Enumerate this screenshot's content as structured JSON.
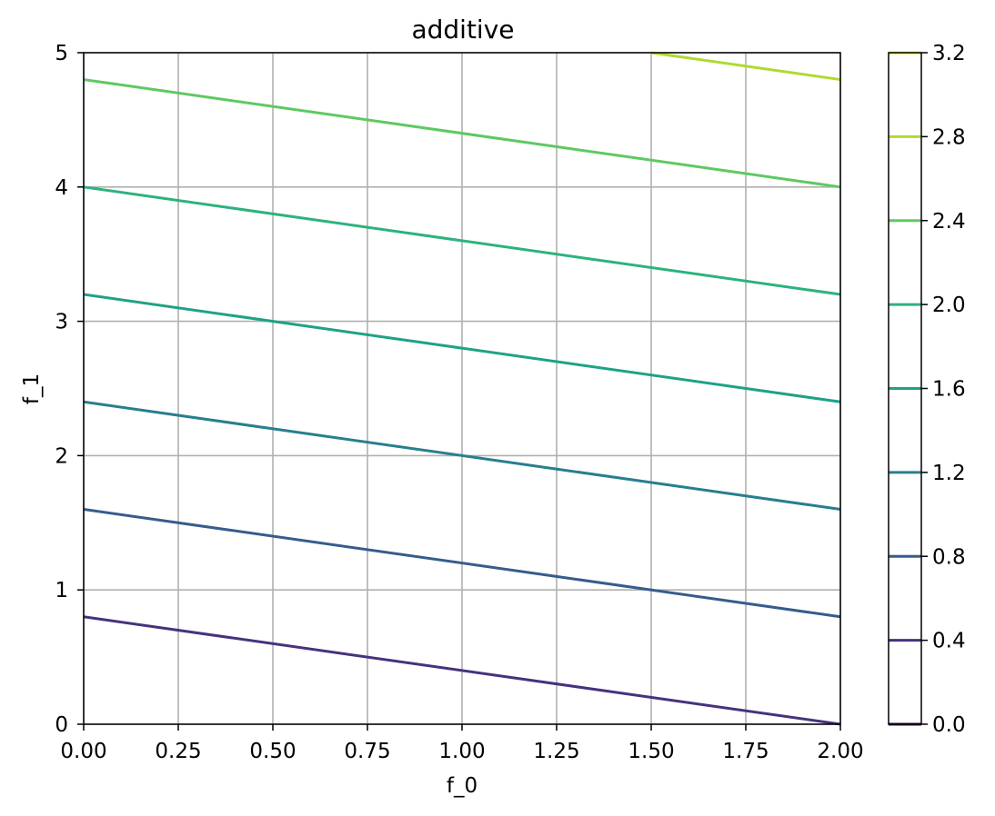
{
  "chart_data": {
    "type": "contour",
    "title": "additive",
    "xlabel": "f_0",
    "ylabel": "f_1",
    "xlim": [
      0,
      2
    ],
    "ylim": [
      0,
      5
    ],
    "xticks": [
      "0.00",
      "0.25",
      "0.50",
      "0.75",
      "1.00",
      "1.25",
      "1.50",
      "1.75",
      "2.00"
    ],
    "yticks": [
      "0",
      "1",
      "2",
      "3",
      "4",
      "5"
    ],
    "grid": true,
    "levels": [
      {
        "value": 0.0,
        "label": "0.0",
        "color": "#440154"
      },
      {
        "value": 0.4,
        "label": "0.4",
        "color": "#46327e"
      },
      {
        "value": 0.8,
        "label": "0.8",
        "color": "#365c8d"
      },
      {
        "value": 1.2,
        "label": "1.2",
        "color": "#277f8e"
      },
      {
        "value": 1.6,
        "label": "1.6",
        "color": "#1fa187"
      },
      {
        "value": 2.0,
        "label": "2.0",
        "color": "#4ac16d"
      },
      {
        "value": 2.4,
        "label": "2.4",
        "color": "#a0da39"
      },
      {
        "value": 2.8,
        "label": "2.8",
        "color": "#fde725"
      },
      {
        "value": 3.2,
        "label": "3.2",
        "color": "#ffffff"
      }
    ],
    "contour_lines": [
      {
        "level": 0.4,
        "color": "#46327e",
        "points": [
          [
            0,
            0.8
          ],
          [
            2,
            0
          ]
        ]
      },
      {
        "level": 0.8,
        "color": "#365c8d",
        "points": [
          [
            0,
            1.6
          ],
          [
            2,
            0.8
          ]
        ]
      },
      {
        "level": 1.2,
        "color": "#277f8e",
        "points": [
          [
            0,
            2.4
          ],
          [
            2,
            1.6
          ]
        ]
      },
      {
        "level": 1.6,
        "color": "#1fa187",
        "points": [
          [
            0,
            3.2
          ],
          [
            2,
            2.4
          ]
        ]
      },
      {
        "level": 2.0,
        "color": "#2db27d",
        "points": [
          [
            0,
            4.0
          ],
          [
            2,
            3.2
          ]
        ]
      },
      {
        "level": 2.4,
        "color": "#5ec962",
        "points": [
          [
            0,
            4.8
          ],
          [
            2,
            4.0
          ]
        ]
      },
      {
        "level": 2.8,
        "color": "#addc30",
        "points": [
          [
            1.5,
            5.0
          ],
          [
            2,
            4.8
          ]
        ]
      }
    ],
    "colorbar": {
      "ticks": [
        "0.0",
        "0.4",
        "0.8",
        "1.2",
        "1.6",
        "2.0",
        "2.4",
        "2.8",
        "3.2"
      ],
      "line_colors": [
        "#440154",
        "#46327e",
        "#365c8d",
        "#277f8e",
        "#1fa187",
        "#2db27d",
        "#5ec962",
        "#addc30",
        "#fde725"
      ]
    }
  }
}
